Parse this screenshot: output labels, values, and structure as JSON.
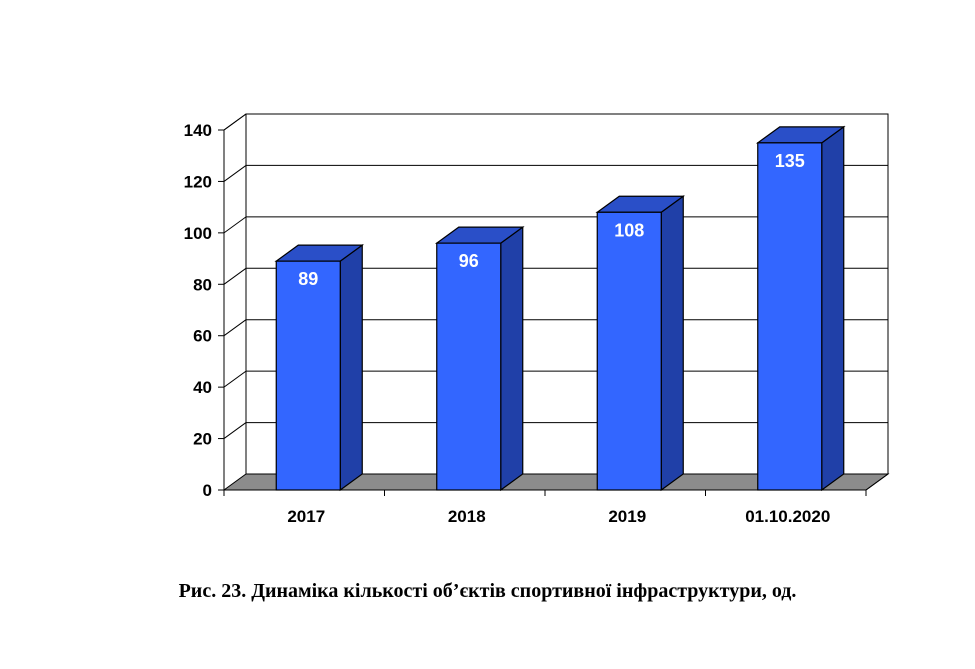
{
  "caption": "Рис. 23. Динаміка кількості об’єктів спортивної інфраструктури, од.",
  "chart_data": {
    "type": "bar",
    "categories": [
      "2017",
      "2018",
      "2019",
      "01.10.2020"
    ],
    "values": [
      89,
      96,
      108,
      135
    ],
    "data_labels": [
      "89",
      "96",
      "108",
      "135"
    ],
    "y_ticks": [
      "0",
      "20",
      "40",
      "60",
      "80",
      "100",
      "120",
      "140"
    ],
    "ylim": [
      0,
      140
    ],
    "grid": true,
    "legend": "none",
    "colors": {
      "bar_front": "#3366ff",
      "bar_side": "#2040a8",
      "bar_top": "#2a4fc8",
      "floor": "#8c8c8c"
    }
  }
}
